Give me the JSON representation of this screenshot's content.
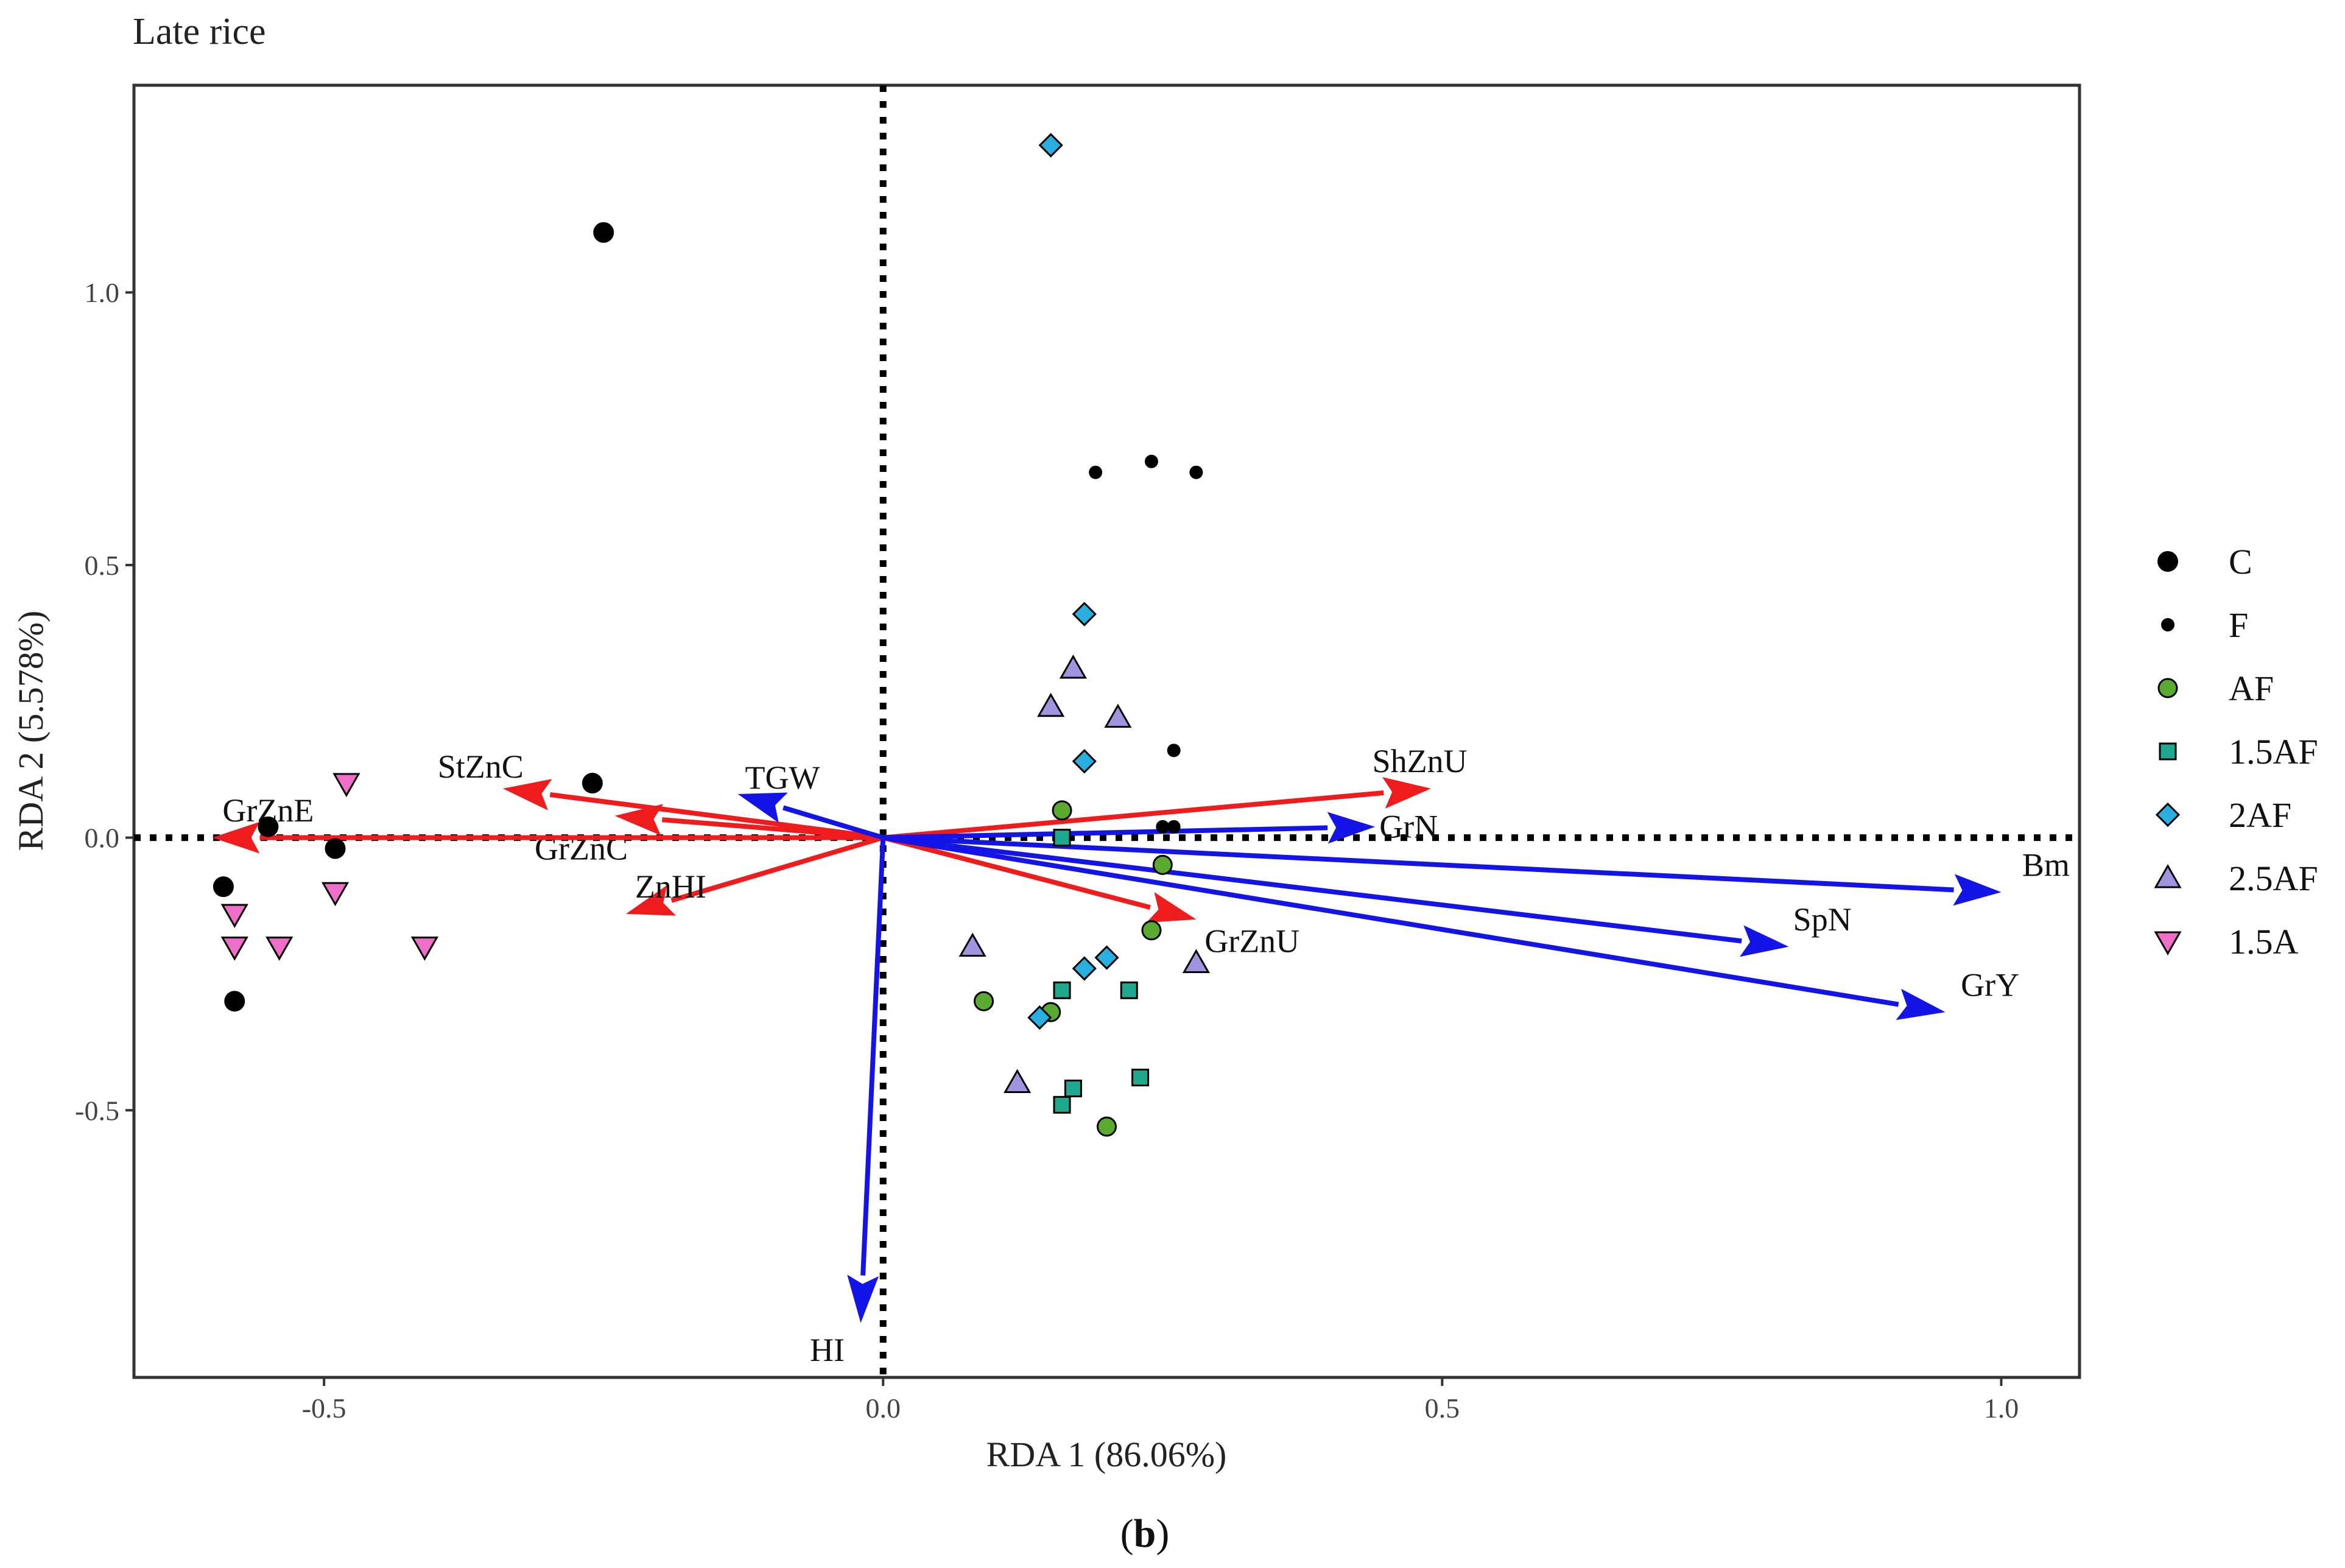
{
  "chart_data": {
    "type": "scatter",
    "title": "Late rice",
    "xlabel": "RDA 1 (86.06%)",
    "ylabel": "RDA 2 (5.578%)",
    "xlim": [
      -0.67,
      1.07
    ],
    "ylim": [
      -0.99,
      1.38
    ],
    "x_ticks": [
      {
        "value": -0.5,
        "label": "-0.5"
      },
      {
        "value": 0.0,
        "label": "0.0"
      },
      {
        "value": 0.5,
        "label": "0.5"
      },
      {
        "value": 1.0,
        "label": "1.0"
      }
    ],
    "y_ticks": [
      {
        "value": -0.5,
        "label": "-0.5"
      },
      {
        "value": 0.0,
        "label": "0.0"
      },
      {
        "value": 0.5,
        "label": "0.5"
      },
      {
        "value": 1.0,
        "label": "1.0"
      }
    ],
    "grid": false,
    "legend_position": "right",
    "caption_open": "(",
    "caption_letter": "b",
    "caption_close": ")",
    "series": [
      {
        "name": "C",
        "marker": "circle-large",
        "color": "#000000",
        "points": [
          [
            -0.25,
            1.11
          ],
          [
            -0.26,
            0.1
          ],
          [
            -0.55,
            0.02
          ],
          [
            -0.49,
            -0.02
          ],
          [
            -0.59,
            -0.09
          ],
          [
            -0.58,
            -0.3
          ]
        ]
      },
      {
        "name": "F",
        "marker": "circle-small",
        "color": "#000000",
        "points": [
          [
            0.19,
            0.67
          ],
          [
            0.24,
            0.69
          ],
          [
            0.28,
            0.67
          ],
          [
            0.26,
            0.16
          ],
          [
            0.25,
            0.02
          ],
          [
            0.26,
            0.02
          ]
        ]
      },
      {
        "name": "AF",
        "marker": "circle",
        "color": "#5aaa32",
        "points": [
          [
            0.16,
            0.05
          ],
          [
            0.25,
            -0.05
          ],
          [
            0.24,
            -0.17
          ],
          [
            0.09,
            -0.3
          ],
          [
            0.15,
            -0.32
          ],
          [
            0.2,
            -0.53
          ]
        ]
      },
      {
        "name": "1.5AF",
        "marker": "square",
        "color": "#20a88e",
        "points": [
          [
            0.16,
            0.0
          ],
          [
            0.16,
            -0.28
          ],
          [
            0.22,
            -0.28
          ],
          [
            0.17,
            -0.46
          ],
          [
            0.16,
            -0.49
          ],
          [
            0.23,
            -0.44
          ]
        ]
      },
      {
        "name": "2AF",
        "marker": "diamond",
        "color": "#29aee0",
        "points": [
          [
            0.15,
            1.27
          ],
          [
            0.18,
            0.41
          ],
          [
            0.18,
            0.14
          ],
          [
            0.2,
            -0.22
          ],
          [
            0.18,
            -0.24
          ],
          [
            0.14,
            -0.33
          ]
        ]
      },
      {
        "name": "2.5AF",
        "marker": "triangle-up",
        "color": "#9e95de",
        "points": [
          [
            0.17,
            0.31
          ],
          [
            0.15,
            0.24
          ],
          [
            0.21,
            0.22
          ],
          [
            0.08,
            -0.2
          ],
          [
            0.28,
            -0.23
          ],
          [
            0.12,
            -0.45
          ]
        ]
      },
      {
        "name": "1.5A",
        "marker": "triangle-down",
        "color": "#ee6ec8",
        "points": [
          [
            -0.48,
            0.1
          ],
          [
            -0.58,
            -0.14
          ],
          [
            -0.49,
            -0.1
          ],
          [
            -0.58,
            -0.2
          ],
          [
            -0.54,
            -0.2
          ],
          [
            -0.41,
            -0.2
          ]
        ]
      }
    ],
    "vectors": [
      {
        "name": "ShZnU",
        "color": "#ee1c1c",
        "x": 0.49,
        "y": 0.09,
        "label_x": 0.48,
        "label_y": 0.14
      },
      {
        "name": "StZnC",
        "color": "#ee1c1c",
        "x": -0.34,
        "y": 0.09,
        "label_x": -0.36,
        "label_y": 0.13
      },
      {
        "name": "GrZnC",
        "color": "#ee1c1c",
        "x": -0.24,
        "y": 0.04,
        "label_x": -0.27,
        "label_y": -0.02
      },
      {
        "name": "GrZnE",
        "color": "#ee1c1c",
        "x": -0.6,
        "y": 0.0,
        "label_x": -0.55,
        "label_y": 0.05
      },
      {
        "name": "ZnHI",
        "color": "#ee1c1c",
        "x": -0.23,
        "y": -0.14,
        "label_x": -0.19,
        "label_y": -0.09
      },
      {
        "name": "GrZnU",
        "color": "#ee1c1c",
        "x": 0.28,
        "y": -0.15,
        "label_x": 0.33,
        "label_y": -0.19
      },
      {
        "name": "TGW",
        "color": "#1414e6",
        "x": -0.13,
        "y": 0.08,
        "label_x": -0.09,
        "label_y": 0.11
      },
      {
        "name": "GrN",
        "color": "#1414e6",
        "x": 0.44,
        "y": 0.02,
        "label_x": 0.47,
        "label_y": 0.02
      },
      {
        "name": "Bm",
        "color": "#1414e6",
        "x": 1.0,
        "y": -0.1,
        "label_x": 1.04,
        "label_y": -0.05
      },
      {
        "name": "SpN",
        "color": "#1414e6",
        "x": 0.81,
        "y": -0.2,
        "label_x": 0.84,
        "label_y": -0.15
      },
      {
        "name": "GrY",
        "color": "#1414e6",
        "x": 0.95,
        "y": -0.32,
        "label_x": 0.99,
        "label_y": -0.27
      },
      {
        "name": "HI",
        "color": "#1414e6",
        "x": -0.02,
        "y": -0.89,
        "label_x": -0.05,
        "label_y": -0.94
      }
    ]
  }
}
